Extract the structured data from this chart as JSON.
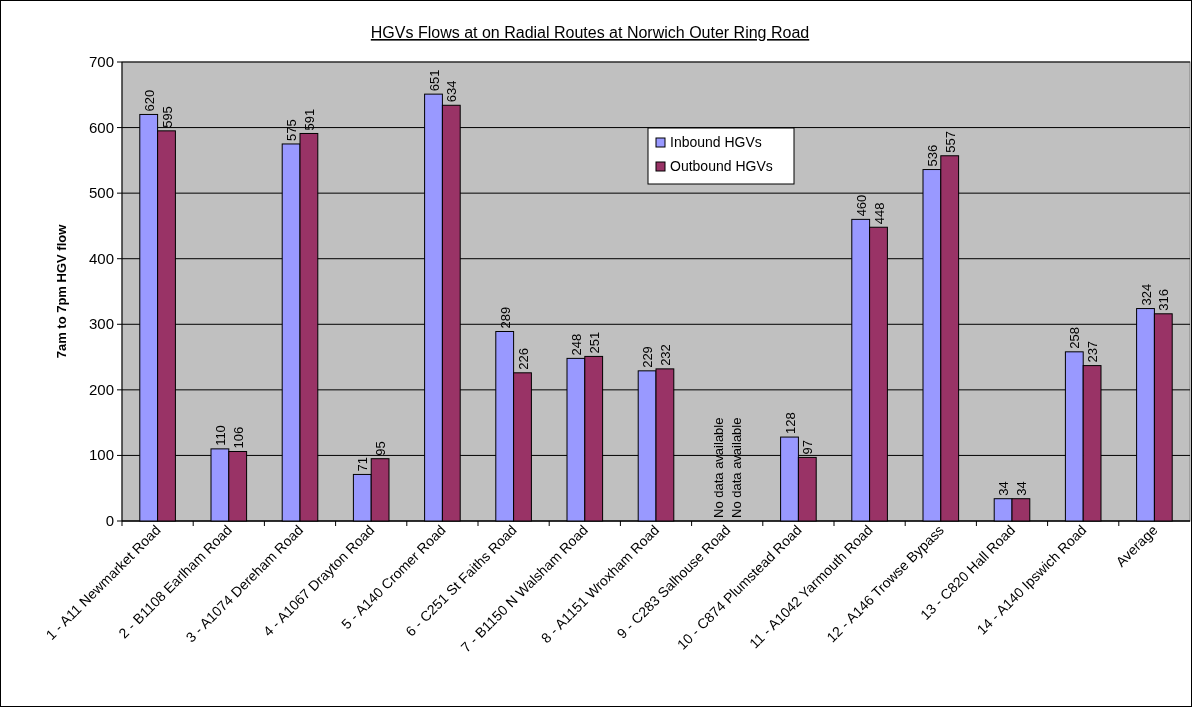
{
  "chart_data": {
    "type": "bar",
    "title": "HGVs Flows at on Radial Routes at Norwich Outer Ring Road",
    "ylabel": "7am to 7pm HGV flow",
    "categories": [
      "1 - A11 Newmarket Road",
      "2 - B1108 Earlham Road",
      "3 - A1074 Dereham Road",
      "4 - A1067 Drayton Road",
      "5 - A140 Cromer Road",
      "6 - C251 St Faiths Road",
      "7 - B1150 N Walsham Road",
      "8 - A1151 Wroxham Road",
      "9 - C283 Salhouse Road",
      "10 - C874 Plumstead Road",
      "11 - A1042 Yarmouth Road",
      "12 - A146 Trowse Bypass",
      "13 - C820 Hall Road",
      "14 - A140 Ipswich Road",
      "Average"
    ],
    "series": [
      {
        "name": "Inbound HGVs",
        "color": "#9999ff",
        "values": [
          620,
          110,
          575,
          71,
          651,
          289,
          248,
          229,
          null,
          128,
          460,
          536,
          34,
          258,
          324
        ],
        "value_labels": [
          "620",
          "110",
          "575",
          "71",
          "651",
          "289",
          "248",
          "229",
          "No data available",
          "128",
          "460",
          "536",
          "34",
          "258",
          "324"
        ]
      },
      {
        "name": "Outbound HGVs",
        "color": "#993366",
        "values": [
          595,
          106,
          591,
          95,
          634,
          226,
          251,
          232,
          null,
          97,
          448,
          557,
          34,
          237,
          316
        ],
        "value_labels": [
          "595",
          "106",
          "591",
          "95",
          "634",
          "226",
          "251",
          "232",
          "No data available",
          "97",
          "448",
          "557",
          "34",
          "237",
          "316"
        ]
      }
    ],
    "ylim": [
      0,
      700
    ],
    "yticks": [
      0,
      100,
      200,
      300,
      400,
      500,
      600,
      700
    ],
    "grid": "y",
    "legend": "top"
  }
}
